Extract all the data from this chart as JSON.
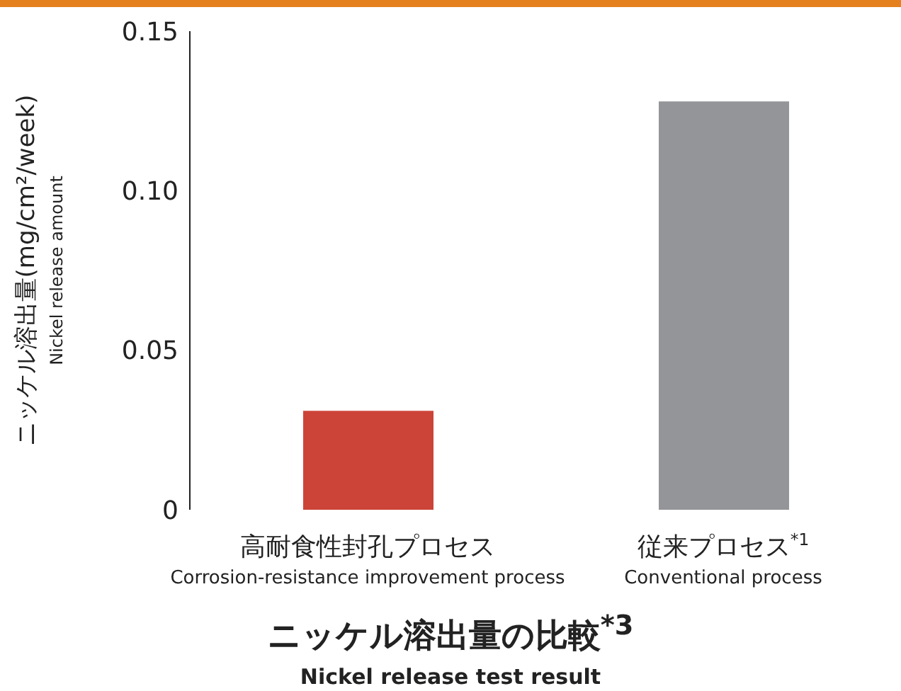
{
  "chart_data": {
    "type": "bar",
    "title": "ニッケル溶出量の比較$^{*3}$",
    "subtitle": "Nickel release test result",
    "ylabel": "ニッケル溶出量(mg/cm²/week)\nNickel release amount",
    "categories": [
      "高耐食性封孔プロセス\nCorrosion-resistance improvement process",
      "従来プロセス$^{*1}$\nConventional process"
    ],
    "values": [
      0.031,
      0.128
    ],
    "colors": [
      "#cc4438",
      "#939598"
    ],
    "ylim": [
      0,
      0.15
    ],
    "yticks": [
      0,
      {
        "value": 0.05,
        "label": "0.05"
      },
      {
        "value": 0.1,
        "label": "0.10"
      },
      {
        "value": 0.15,
        "label": "0.15"
      }
    ],
    "grid": false,
    "legend": false
  }
}
